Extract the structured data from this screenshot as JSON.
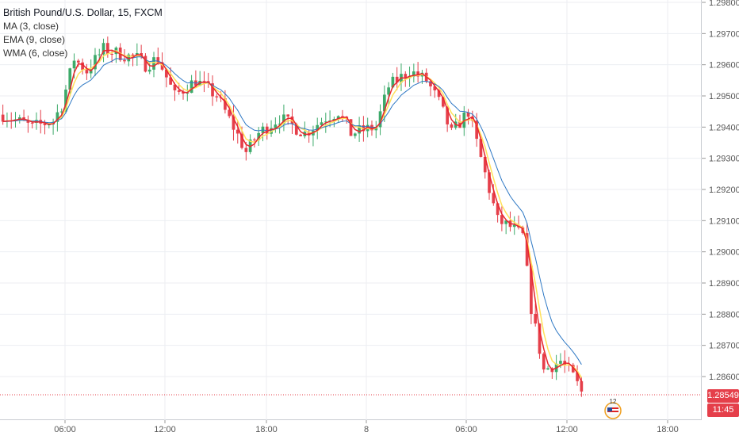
{
  "legend": {
    "title": "British Pound/U.S. Dollar, 15, FXCM",
    "ma": "MA (3, close)",
    "ema": "EMA (9, close)",
    "wma": "WMA (6, close)"
  },
  "colors": {
    "up": "#3daa6a",
    "down": "#e53f4a",
    "ma": "#e8262e",
    "ema": "#2e78c4",
    "wma": "#ffe15a",
    "grid": "#eceef2",
    "axis_text": "#555555",
    "last_price_line": "#e53f4a"
  },
  "price_tags": {
    "last_price": "1.28549",
    "countdown": "11:45",
    "bottom_partial": "1."
  },
  "event_badge": {
    "count": "12",
    "icon": "us-flag-icon"
  },
  "chart_data": {
    "type": "candlestick",
    "title": "British Pound/U.S. Dollar, 15, FXCM",
    "ylim": [
      1.285,
      1.298
    ],
    "yticks": [
      1.298,
      1.297,
      1.296,
      1.295,
      1.294,
      1.293,
      1.292,
      1.291,
      1.29,
      1.289,
      1.288,
      1.287,
      1.286
    ],
    "ytick_labels": [
      "1.29800",
      "1.29700",
      "1.29600",
      "1.29500",
      "1.29400",
      "1.29300",
      "1.29200",
      "1.29100",
      "1.29000",
      "1.28900",
      "1.28800",
      "1.28700",
      "1.28600"
    ],
    "xticks": [
      "06:00",
      "12:00",
      "18:00",
      "8",
      "06:00",
      "12:00",
      "18:00"
    ],
    "bar_interval_minutes": 15,
    "last_price": 1.28549,
    "close_path": [
      [
        0,
        1.2944
      ],
      [
        8,
        1.294
      ],
      [
        14,
        1.2942
      ],
      [
        16,
        1.2947
      ],
      [
        20,
        1.2962
      ],
      [
        24,
        1.2958
      ],
      [
        28,
        1.2965
      ],
      [
        34,
        1.2963
      ],
      [
        38,
        1.2962
      ],
      [
        40,
        1.296
      ],
      [
        44,
        1.2962
      ],
      [
        48,
        1.295
      ],
      [
        54,
        1.2955
      ],
      [
        60,
        1.295
      ],
      [
        64,
        1.294
      ],
      [
        68,
        1.2932
      ],
      [
        72,
        1.2938
      ],
      [
        78,
        1.2943
      ],
      [
        84,
        1.2938
      ],
      [
        90,
        1.2943
      ],
      [
        94,
        1.2945
      ],
      [
        98,
        1.2938
      ],
      [
        104,
        1.294
      ],
      [
        108,
        1.2953
      ],
      [
        114,
        1.2958
      ],
      [
        118,
        1.2955
      ],
      [
        122,
        1.2948
      ],
      [
        126,
        1.2938
      ],
      [
        130,
        1.2945
      ],
      [
        134,
        1.293
      ],
      [
        138,
        1.291
      ],
      [
        142,
        1.2908
      ],
      [
        146,
        1.2905
      ],
      [
        148,
        1.2882
      ],
      [
        152,
        1.2862
      ],
      [
        156,
        1.2865
      ],
      [
        160,
        1.286
      ],
      [
        162,
        1.2855
      ]
    ]
  }
}
